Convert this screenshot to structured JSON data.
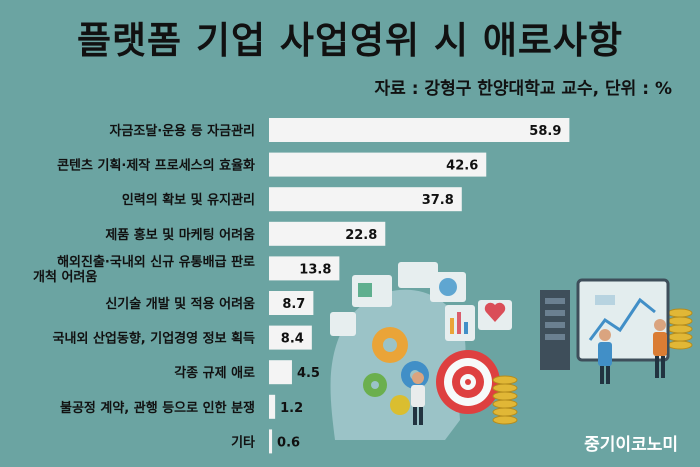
{
  "header": {
    "title": "플랫폼 기업 사업영위 시 애로사항",
    "source": "자료 : 강형구 한양대학교 교수, 단위 : %"
  },
  "footer": {
    "brand": "중기이코노미"
  },
  "colors": {
    "background": "#6ba4a2",
    "bar": "#f4f4f4",
    "text": "#111111"
  },
  "chart_data": {
    "type": "bar",
    "orientation": "horizontal",
    "title": "플랫폼 기업 사업영위 시 애로사항",
    "categories": [
      "자금조달·운용 등 자금관리",
      "콘텐츠 기획·제작 프로세스의 효율화",
      "인력의 확보 및 유지관리",
      "제품 홍보 및 마케팅 어려움",
      "해외진출·국내외 신규 유통배급 판로 개척 어려움",
      "신기술 개발 및 적용 어려움",
      "국내외 산업동향, 기업경영 정보 획득",
      "각종 규제 애로",
      "불공정 계약, 관행 등으로 인한 분쟁",
      "기타"
    ],
    "category_lines": [
      [
        "자금조달·운용 등 자금관리"
      ],
      [
        "콘텐츠 기획·제작 프로세스의 효율화"
      ],
      [
        "인력의 확보 및 유지관리"
      ],
      [
        "제품 홍보 및 마케팅 어려움"
      ],
      [
        "해외진출·국내외 신규 유통배급 판로",
        "개척 어려움"
      ],
      [
        "신기술 개발 및 적용 어려움"
      ],
      [
        "국내외 산업동향, 기업경영 정보 획득"
      ],
      [
        "각종 규제 애로"
      ],
      [
        "불공정 계약, 관행 등으로 인한 분쟁"
      ],
      [
        "기타"
      ]
    ],
    "values": [
      58.9,
      42.6,
      37.8,
      22.8,
      13.8,
      8.7,
      8.4,
      4.5,
      1.2,
      0.6
    ],
    "unit": "%",
    "xlim": [
      0,
      60
    ],
    "grid": false,
    "legend": "none"
  }
}
